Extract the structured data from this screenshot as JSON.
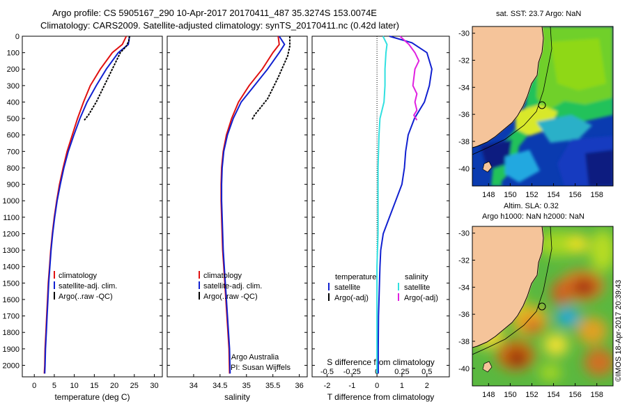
{
  "titles": {
    "line1": "Argo profile: CS 5905167_290 10-Apr-2017 20170411_487 35.3274S 153.0074E",
    "line2": "Climatology: CARS2009. Satellite-adjusted climatology: synTS_20170411.nc (0.42d later)"
  },
  "colors": {
    "climatology": "#e01010",
    "satellite_adj": "#1020d0",
    "argo": "#000000",
    "salinity_satellite": "#30e0e0",
    "salinity_argo": "#e020e0",
    "land": "#f5c49a"
  },
  "chart_data": [
    {
      "type": "line",
      "xlabel": "temperature (deg C)",
      "ylabel": "",
      "xlim": [
        -3,
        32
      ],
      "ylim": [
        2070,
        0
      ],
      "xticks": [
        0,
        5,
        10,
        15,
        20,
        25,
        30
      ],
      "yticks": [
        0,
        100,
        200,
        300,
        400,
        500,
        600,
        700,
        800,
        900,
        1000,
        1100,
        1200,
        1300,
        1400,
        1500,
        1600,
        1700,
        1800,
        1900,
        2000
      ],
      "legend": [
        "climatology",
        "satellite-adj. clim.",
        "Argo(..raw -QC)"
      ],
      "legend_placement": "lower-middle",
      "series": [
        {
          "name": "climatology",
          "x": [
            23,
            22,
            19.5,
            16.5,
            14,
            12.3,
            10.8,
            9.5,
            8.2,
            7.2,
            6.3,
            5.6,
            5,
            4.5,
            4.1,
            3.8,
            3.5,
            3.3,
            3.1,
            2.9,
            2.7,
            2.6,
            2.5
          ],
          "y": [
            0,
            50,
            100,
            200,
            300,
            400,
            500,
            600,
            700,
            800,
            900,
            1000,
            1100,
            1200,
            1300,
            1400,
            1500,
            1600,
            1700,
            1800,
            1900,
            2000,
            2050
          ]
        },
        {
          "name": "satellite-adj. clim.",
          "x": [
            23.8,
            23.5,
            21,
            18,
            15.5,
            13.2,
            11.4,
            9.9,
            8.5,
            7.4,
            6.5,
            5.7,
            5.1,
            4.6,
            4.2,
            3.9,
            3.6,
            3.4,
            3.2,
            3,
            2.8,
            2.7,
            2.6
          ],
          "y": [
            0,
            50,
            100,
            200,
            300,
            400,
            500,
            600,
            700,
            800,
            900,
            1000,
            1100,
            1200,
            1300,
            1400,
            1500,
            1600,
            1700,
            1800,
            1900,
            2000,
            2050
          ]
        },
        {
          "name": "Argo(..raw -QC)",
          "x": [
            23.8,
            23.6,
            23,
            21.5,
            19.5,
            17.5,
            15.5,
            13.5,
            12.5
          ],
          "y": [
            0,
            30,
            60,
            100,
            200,
            300,
            400,
            480,
            510
          ]
        }
      ]
    },
    {
      "type": "line",
      "xlabel": "salinity",
      "xlim": [
        33.5,
        36.15
      ],
      "ylim": [
        2070,
        0
      ],
      "xticks": [
        34,
        34.5,
        35,
        35.5,
        36
      ],
      "xticklabels": [
        "34",
        "34.5",
        "35",
        "35.5",
        "36"
      ],
      "legend": [
        "climatology",
        "satellite-adj. clim.",
        "Argo(..raw -QC)"
      ],
      "legend_placement": "lower-middle",
      "annotation": [
        "Argo Australia",
        "PI: Susan Wijffels"
      ],
      "series": [
        {
          "name": "climatology",
          "x": [
            35.6,
            35.62,
            35.5,
            35.3,
            35.05,
            34.85,
            34.72,
            34.62,
            34.56,
            34.53,
            34.52,
            34.52,
            34.53,
            34.55,
            34.57,
            34.59,
            34.61,
            34.63,
            34.65,
            34.67,
            34.68
          ],
          "y": [
            0,
            50,
            100,
            200,
            300,
            400,
            500,
            600,
            700,
            800,
            900,
            1000,
            1100,
            1300,
            1400,
            1500,
            1600,
            1700,
            1800,
            1900,
            2050
          ]
        },
        {
          "name": "satellite-adj. clim.",
          "x": [
            35.62,
            35.72,
            35.62,
            35.4,
            35.15,
            34.9,
            34.75,
            34.64,
            34.57,
            34.54,
            34.53,
            34.53,
            34.54,
            34.56,
            34.58,
            34.6,
            34.62,
            34.64,
            34.66,
            34.68,
            34.69
          ],
          "y": [
            0,
            50,
            100,
            200,
            300,
            400,
            500,
            600,
            700,
            800,
            900,
            1000,
            1100,
            1300,
            1400,
            1500,
            1600,
            1700,
            1800,
            1900,
            2050
          ]
        },
        {
          "name": "Argo(..raw -QC)",
          "x": [
            35.82,
            35.82,
            35.78,
            35.6,
            35.4,
            35.15,
            35.1
          ],
          "y": [
            0,
            60,
            120,
            250,
            380,
            480,
            510
          ]
        }
      ]
    },
    {
      "type": "line",
      "xlabel": "T difference from climatology",
      "xlabel_top": "S difference from climatology",
      "xlim": [
        -2.6,
        2.9
      ],
      "ylim": [
        2070,
        0
      ],
      "xticks": [
        -2,
        -1,
        0,
        1,
        2
      ],
      "sticks": [
        -0.5,
        -0.25,
        0,
        0.25,
        0.5
      ],
      "legend": {
        "temperature_header": "temperature",
        "salinity_header": "salinity",
        "t_satellite": "satellite",
        "t_argo": "Argo(-adj)",
        "s_satellite": "satellite",
        "s_argo": "Argo(-adj)"
      },
      "legend_placement": "lower-middle",
      "series": [
        {
          "name": "temperature satellite",
          "x": [
            0.5,
            1.4,
            2.0,
            2.2,
            2.1,
            1.9,
            1.5,
            1.25,
            1.15,
            1.1,
            1.0,
            0.75,
            0.5,
            0.25,
            0.15,
            0.12,
            0.1,
            0.08,
            0.06,
            0.05,
            0.05
          ],
          "y": [
            0,
            40,
            100,
            200,
            300,
            400,
            500,
            600,
            700,
            800,
            900,
            1000,
            1100,
            1200,
            1300,
            1400,
            1500,
            1600,
            1700,
            1900,
            2050
          ]
        },
        {
          "name": "salinity satellite",
          "x": [
            0.06,
            0.1,
            0.09,
            0.08,
            0.08,
            0.07,
            0.03,
            0.02,
            0.01,
            0.01,
            0.01,
            0.0,
            0.0,
            0.0,
            0.0
          ],
          "y": [
            0,
            50,
            100,
            200,
            300,
            400,
            500,
            600,
            800,
            1000,
            1200,
            1400,
            1600,
            1800,
            2050
          ]
        },
        {
          "name": "salinity Argo(-adj)",
          "x": [
            0.23,
            0.32,
            0.38,
            0.42,
            0.38,
            0.36,
            0.4,
            0.38,
            0.4,
            0.37,
            0.4
          ],
          "y": [
            0,
            50,
            100,
            150,
            200,
            300,
            350,
            400,
            450,
            480,
            510
          ]
        }
      ]
    },
    {
      "type": "heatmap",
      "title": "sat. SST: 23.7 Argo: NaN",
      "xticks": [
        148,
        150,
        152,
        154,
        156,
        158
      ],
      "yticks": [
        -30,
        -32,
        -34,
        -36,
        -38,
        -40
      ],
      "xlim": [
        146.5,
        159.5
      ],
      "ylim": [
        -41.3,
        -29.5
      ],
      "marker": {
        "lon": 153.0074,
        "lat": -35.3274
      }
    },
    {
      "type": "heatmap",
      "title": "Altim. SLA: 0.32",
      "subtitle": "Argo h1000: NaN h2000: NaN",
      "xticks": [
        148,
        150,
        152,
        154,
        156,
        158
      ],
      "yticks": [
        -30,
        -32,
        -34,
        -36,
        -38,
        -40
      ],
      "xlim": [
        146.5,
        159.5
      ],
      "ylim": [
        -41.3,
        -29.5
      ],
      "marker": {
        "lon": 153.0074,
        "lat": -35.3274
      }
    }
  ],
  "credit": "©IMOS 18-Apr-2017 20:39:43"
}
